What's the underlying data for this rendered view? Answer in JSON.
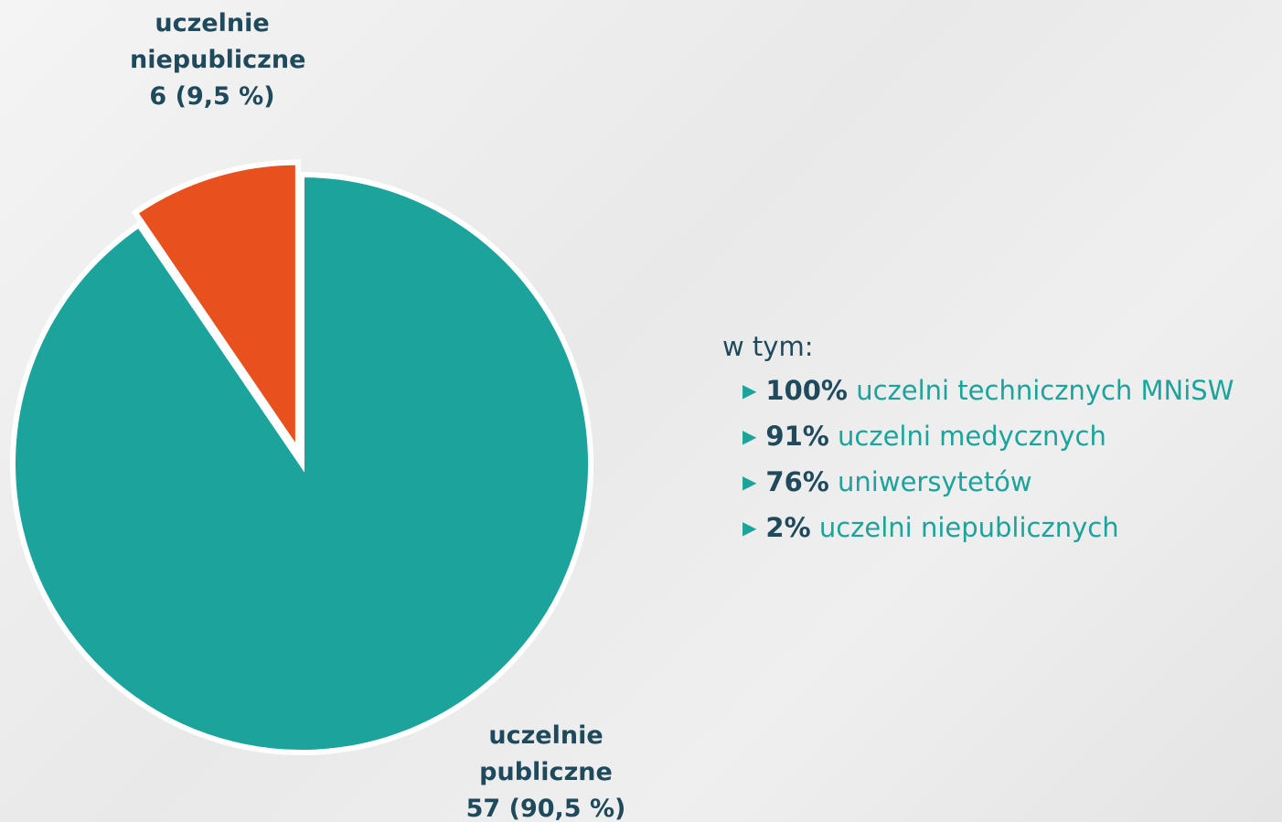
{
  "chart_data": {
    "type": "pie",
    "categories": [
      "uczelnie publiczne",
      "uczelnie niepubliczne"
    ],
    "values": [
      57,
      6
    ],
    "value_labels": [
      "57 (90,5 %)",
      "6 (9,5 %)"
    ],
    "colors": [
      "#1ba39c",
      "#e8501e"
    ],
    "exploded": [
      false,
      true
    ],
    "annotation": {
      "title": "w tym:",
      "items": [
        {
          "percent": "100%",
          "text": "uczelni technicznych MNiSW"
        },
        {
          "percent": "91%",
          "text": "uczelni medycznych"
        },
        {
          "percent": "76%",
          "text": "uniwersytetów"
        },
        {
          "percent": "2%",
          "text": "uczelni niepublicznych"
        }
      ]
    }
  }
}
